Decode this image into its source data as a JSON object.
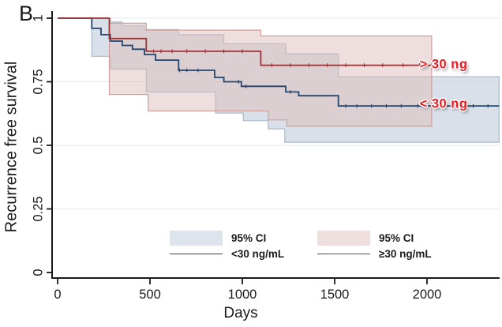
{
  "panel_label": "B",
  "y_axis": {
    "label": "Recurrence free survival",
    "range": [
      0,
      1
    ],
    "ticks": [
      {
        "v": 1,
        "label": "1"
      },
      {
        "v": 0.75,
        "label": "0.75"
      },
      {
        "v": 0.5,
        "label": "0.5"
      },
      {
        "v": 0.25,
        "label": "0.25"
      },
      {
        "v": 0,
        "label": "0"
      }
    ]
  },
  "x_axis": {
    "label": "Days",
    "range": [
      0,
      2390
    ],
    "ticks": [
      {
        "v": 0,
        "label": "0"
      },
      {
        "v": 500,
        "label": "500"
      },
      {
        "v": 1000,
        "label": "1000"
      },
      {
        "v": 1500,
        "label": "1500"
      },
      {
        "v": 2000,
        "label": "2000"
      }
    ]
  },
  "chart_data": {
    "type": "line",
    "subtype": "kaplan-meier-step-with-ci",
    "title": "",
    "xlabel": "Days",
    "ylabel": "Recurrence free survival",
    "xlim": [
      0,
      2390
    ],
    "ylim": [
      0,
      1
    ],
    "grid": {
      "values": [
        0.25,
        0.5,
        0.75,
        1.0
      ],
      "color": "#e2e9f1"
    },
    "legend_position": "bottom-center-inside",
    "series": [
      {
        "name": "<30 ng/mL",
        "ci_label": "95% CI",
        "line_color": "#24456e",
        "band_fill": "#c1cddc",
        "band_opacity": 0.62,
        "band_edge": "#a9b9cb",
        "end_day": 2390,
        "steps": [
          [
            0,
            1.0
          ],
          [
            185,
            0.96
          ],
          [
            235,
            0.935
          ],
          [
            285,
            0.91
          ],
          [
            350,
            0.893
          ],
          [
            405,
            0.878
          ],
          [
            470,
            0.857
          ],
          [
            530,
            0.835
          ],
          [
            655,
            0.795
          ],
          [
            850,
            0.767
          ],
          [
            900,
            0.75
          ],
          [
            995,
            0.732
          ],
          [
            1235,
            0.71
          ],
          [
            1305,
            0.695
          ],
          [
            1520,
            0.655
          ]
        ],
        "ci_upper": [
          [
            185,
            1.0
          ],
          [
            285,
            0.985
          ],
          [
            350,
            0.97
          ],
          [
            470,
            0.955
          ],
          [
            655,
            0.935
          ],
          [
            900,
            0.9
          ],
          [
            1235,
            0.86
          ],
          [
            1520,
            0.77
          ]
        ],
        "ci_lower": [
          [
            185,
            0.85
          ],
          [
            285,
            0.8
          ],
          [
            480,
            0.71
          ],
          [
            855,
            0.627
          ],
          [
            1005,
            0.597
          ],
          [
            1140,
            0.565
          ],
          [
            1230,
            0.512
          ]
        ],
        "censor_days": [
          660,
          700,
          760,
          980,
          1020,
          1260,
          1560,
          1620,
          1700,
          1780,
          1860,
          1950,
          2050,
          2150,
          2250,
          2330
        ]
      },
      {
        "name": "≥30 ng/mL",
        "ci_label": "95% CI",
        "line_color": "#9a3335",
        "band_fill": "#debebc",
        "band_opacity": 0.5,
        "band_edge": "#cf9f9c",
        "end_day": 2025,
        "steps": [
          [
            0,
            1.0
          ],
          [
            280,
            0.92
          ],
          [
            480,
            0.87
          ],
          [
            1100,
            0.815
          ]
        ],
        "ci_upper": [
          [
            280,
            0.98
          ],
          [
            480,
            0.953
          ],
          [
            1100,
            0.93
          ]
        ],
        "ci_lower": [
          [
            280,
            0.7
          ],
          [
            490,
            0.635
          ],
          [
            1140,
            0.6
          ],
          [
            1240,
            0.575
          ]
        ],
        "censor_days": [
          520,
          560,
          620,
          700,
          800,
          900,
          1000,
          1160,
          1260,
          1360,
          1460,
          1560,
          1660,
          1760,
          1870,
          1960
        ]
      }
    ],
    "annotations": [
      {
        "text": "> 30 ng",
        "x_day": 2090,
        "y_value": 0.817,
        "color": "#e8191f"
      },
      {
        "text": "< 30 ng",
        "x_day": 2090,
        "y_value": 0.661,
        "color": "#e8191f"
      }
    ]
  },
  "legend": {
    "items": [
      {
        "ci_label": "95% CI",
        "line_label": "<30 ng/mL",
        "swatch_fill": "#dde4ec",
        "line_color": "#24456e"
      },
      {
        "ci_label": "95% CI",
        "line_label": "≥30 ng/mL",
        "swatch_fill": "#eededd",
        "line_color": "#9a3335"
      }
    ]
  }
}
